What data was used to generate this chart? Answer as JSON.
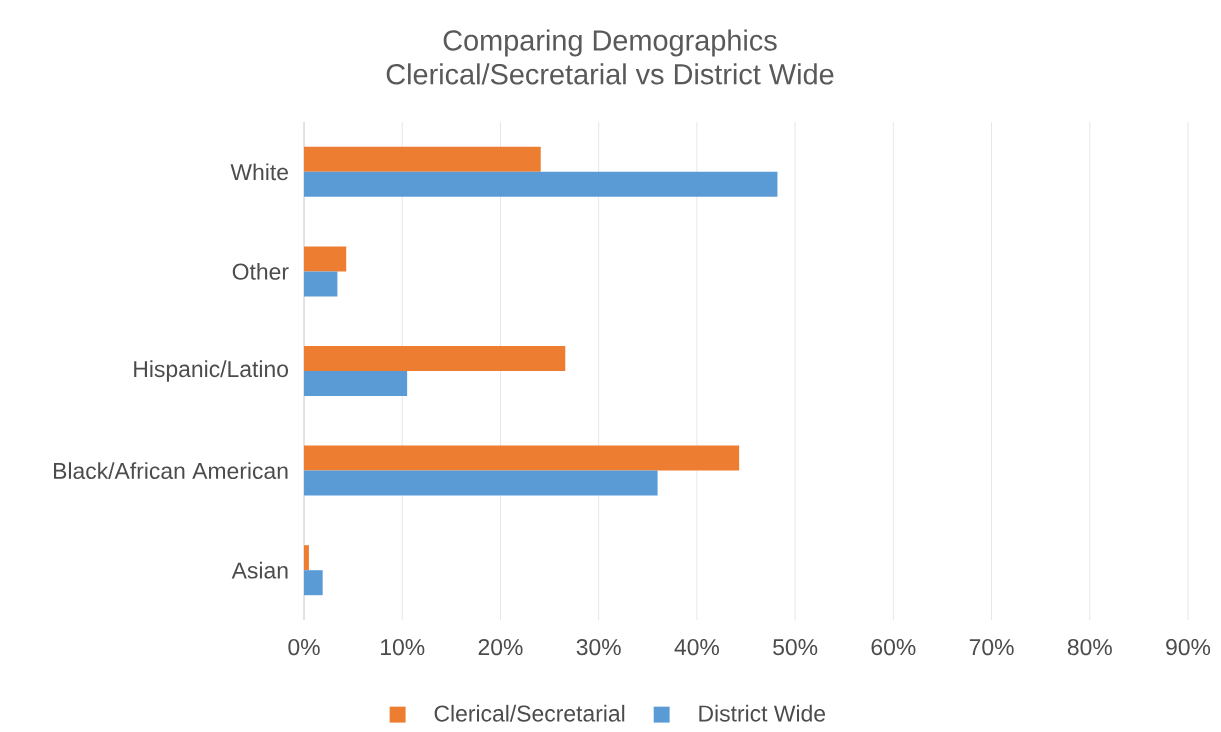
{
  "chart_data": {
    "type": "bar",
    "orientation": "horizontal",
    "title": "Comparing Demographics",
    "subtitle": "Clerical/Secretarial vs District Wide",
    "categories": [
      "White",
      "Other",
      "Hispanic/Latino",
      "Black/African American",
      "Asian"
    ],
    "series": [
      {
        "name": "Clerical/Secretarial",
        "color": "#ed7d31",
        "values": [
          24.1,
          4.3,
          26.6,
          44.3,
          0.5
        ]
      },
      {
        "name": "District Wide",
        "color": "#5b9bd5",
        "values": [
          48.2,
          3.4,
          10.5,
          36.0,
          1.9
        ]
      }
    ],
    "xlim": [
      0,
      90
    ],
    "xticks": [
      {
        "value": 0,
        "label": "0%"
      },
      {
        "value": 10,
        "label": "10%"
      },
      {
        "value": 20,
        "label": "20%"
      },
      {
        "value": 30,
        "label": "30%"
      },
      {
        "value": 40,
        "label": "40%"
      },
      {
        "value": 50,
        "label": "50%"
      },
      {
        "value": 60,
        "label": "60%"
      },
      {
        "value": 70,
        "label": "70%"
      },
      {
        "value": 80,
        "label": "80%"
      },
      {
        "value": 90,
        "label": "90%"
      }
    ],
    "grid": "x",
    "legend": "bottom"
  }
}
